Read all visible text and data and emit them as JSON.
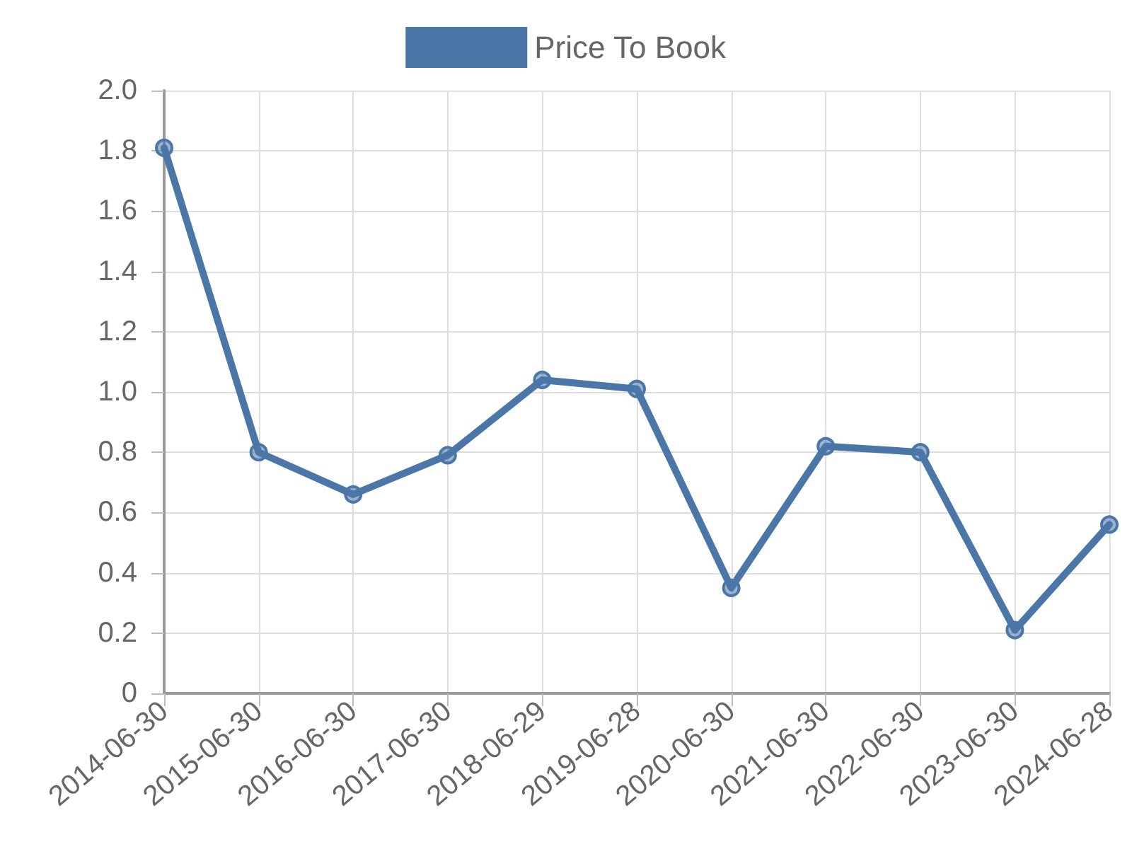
{
  "chart_data": {
    "type": "line",
    "categories": [
      "2014-06-30",
      "2015-06-30",
      "2016-06-30",
      "2017-06-30",
      "2018-06-29",
      "2019-06-28",
      "2020-06-30",
      "2021-06-30",
      "2022-06-30",
      "2023-06-30",
      "2024-06-28"
    ],
    "series": [
      {
        "name": "Price To Book",
        "color": "#4a76a8",
        "values": [
          1.81,
          0.8,
          0.66,
          0.79,
          1.04,
          1.01,
          0.35,
          0.82,
          0.8,
          0.21,
          0.56
        ]
      }
    ],
    "ylim": [
      0,
      2
    ],
    "yticks": [
      0,
      0.2,
      0.4,
      0.6,
      0.8,
      {
        "value": 1,
        "label": "1.0"
      },
      1.2,
      1.4,
      1.6,
      1.8,
      {
        "value": 2,
        "label": "2.0"
      }
    ],
    "grid": true,
    "legend": "top",
    "marker": "circle",
    "line_style": "solid"
  }
}
